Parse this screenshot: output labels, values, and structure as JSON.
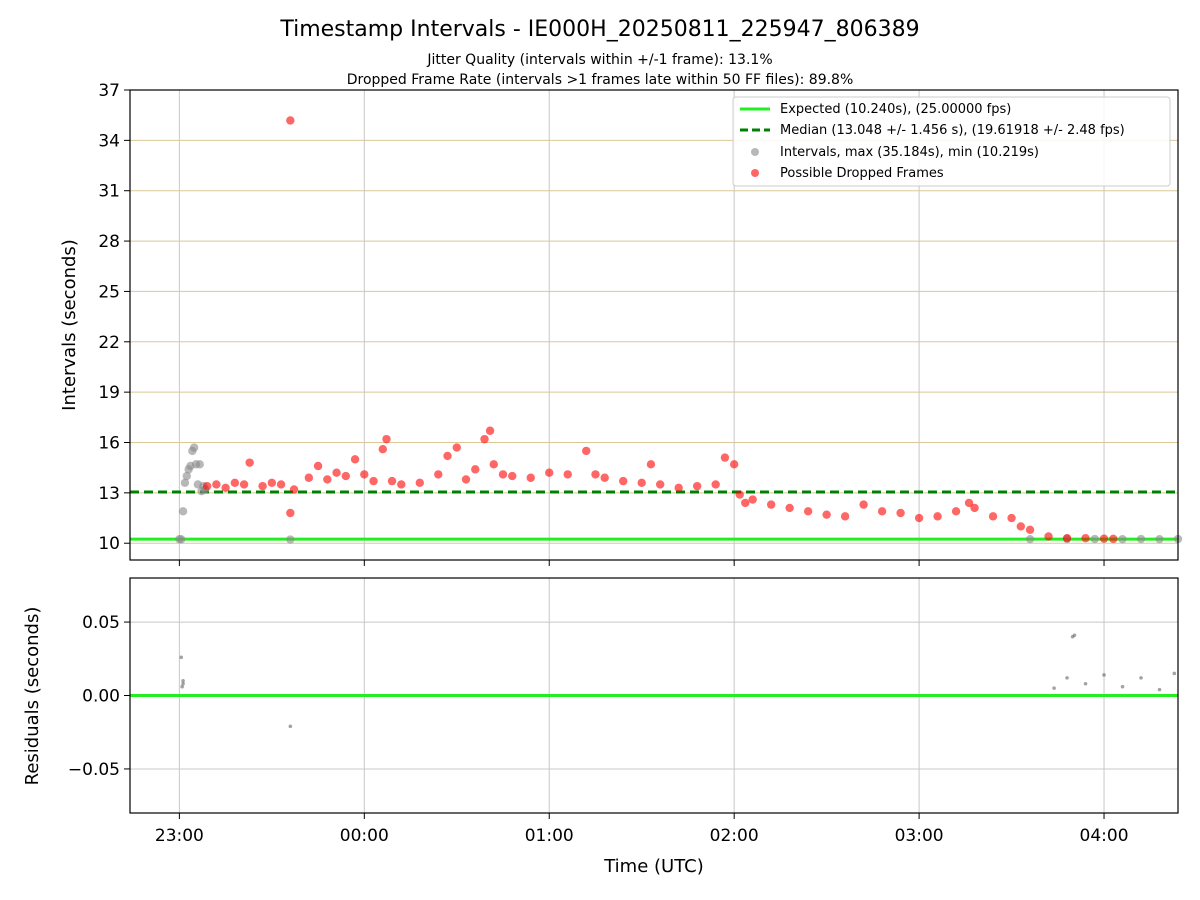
{
  "chart_data": [
    {
      "type": "scatter",
      "title": "Timestamp Intervals - IE000H_20250811_225947_806389",
      "subtitle_lines": [
        "Jitter Quality (intervals within +/-1 frame): 13.1%",
        "Dropped Frame Rate (intervals >1 frames late within 50 FF files): 89.8%"
      ],
      "xlabel": "",
      "ylabel": "Intervals (seconds)",
      "x_unit": "hours UTC (continuous past midnight)",
      "xlim": [
        22.733,
        28.4
      ],
      "ylim": [
        9,
        37
      ],
      "yticks": [
        10,
        13,
        16,
        19,
        22,
        25,
        28,
        31,
        34,
        37
      ],
      "xticks": [
        23,
        24,
        25,
        26,
        27,
        28
      ],
      "xtick_labels": [
        "23:00",
        "00:00",
        "01:00",
        "02:00",
        "03:00",
        "04:00"
      ],
      "grid": true,
      "legend_position": "upper right",
      "legend": [
        "Expected (10.240s), (25.00000 fps)",
        "Median (13.048 +/- 1.456 s), (19.61918 +/- 2.48 fps)",
        "Intervals, max (35.184s), min (10.219s)",
        "Possible Dropped Frames"
      ],
      "lines": [
        {
          "name": "Expected (10.240s), (25.00000 fps)",
          "y": 10.24,
          "style": "solid",
          "color": "#22ee22"
        },
        {
          "name": "Median (13.048 +/- 1.456 s), (19.61918 +/- 2.48 fps)",
          "y": 13.048,
          "style": "dashed",
          "color": "#008000"
        }
      ],
      "series": [
        {
          "name": "Intervals, max (35.184s), min (10.219s)",
          "color": "#888888",
          "points": [
            [
              23.0,
              10.24
            ],
            [
              23.01,
              10.23
            ],
            [
              23.02,
              11.9
            ],
            [
              23.03,
              13.6
            ],
            [
              23.04,
              14.0
            ],
            [
              23.05,
              14.4
            ],
            [
              23.06,
              14.6
            ],
            [
              23.07,
              15.5
            ],
            [
              23.08,
              15.7
            ],
            [
              23.09,
              14.7
            ],
            [
              23.1,
              13.5
            ],
            [
              23.12,
              13.1
            ],
            [
              23.14,
              13.2
            ],
            [
              23.11,
              14.7
            ],
            [
              23.13,
              13.4
            ],
            [
              23.6,
              10.22
            ],
            [
              27.6,
              10.24
            ],
            [
              27.8,
              10.26
            ],
            [
              27.95,
              10.25
            ],
            [
              28.1,
              10.24
            ],
            [
              28.2,
              10.25
            ],
            [
              28.3,
              10.24
            ],
            [
              28.4,
              10.25
            ]
          ]
        },
        {
          "name": "Possible Dropped Frames",
          "color": "#ff0000",
          "points": [
            [
              23.15,
              13.4
            ],
            [
              23.2,
              13.5
            ],
            [
              23.25,
              13.3
            ],
            [
              23.3,
              13.6
            ],
            [
              23.35,
              13.5
            ],
            [
              23.38,
              14.8
            ],
            [
              23.45,
              13.4
            ],
            [
              23.5,
              13.6
            ],
            [
              23.55,
              13.5
            ],
            [
              23.6,
              35.184
            ],
            [
              23.6,
              11.8
            ],
            [
              23.62,
              13.2
            ],
            [
              23.7,
              13.9
            ],
            [
              23.75,
              14.6
            ],
            [
              23.8,
              13.8
            ],
            [
              23.85,
              14.2
            ],
            [
              23.9,
              14.0
            ],
            [
              23.95,
              15.0
            ],
            [
              24.0,
              14.1
            ],
            [
              24.05,
              13.7
            ],
            [
              24.1,
              15.6
            ],
            [
              24.12,
              16.2
            ],
            [
              24.15,
              13.7
            ],
            [
              24.2,
              13.5
            ],
            [
              24.3,
              13.6
            ],
            [
              24.4,
              14.1
            ],
            [
              24.45,
              15.2
            ],
            [
              24.5,
              15.7
            ],
            [
              24.55,
              13.8
            ],
            [
              24.6,
              14.4
            ],
            [
              24.65,
              16.2
            ],
            [
              24.68,
              16.7
            ],
            [
              24.7,
              14.7
            ],
            [
              24.75,
              14.1
            ],
            [
              24.8,
              14.0
            ],
            [
              24.9,
              13.9
            ],
            [
              25.0,
              14.2
            ],
            [
              25.1,
              14.1
            ],
            [
              25.2,
              15.5
            ],
            [
              25.25,
              14.1
            ],
            [
              25.3,
              13.9
            ],
            [
              25.4,
              13.7
            ],
            [
              25.5,
              13.6
            ],
            [
              25.55,
              14.7
            ],
            [
              25.6,
              13.5
            ],
            [
              25.7,
              13.3
            ],
            [
              25.8,
              13.4
            ],
            [
              25.9,
              13.5
            ],
            [
              25.95,
              15.1
            ],
            [
              26.0,
              14.7
            ],
            [
              26.03,
              12.9
            ],
            [
              26.06,
              12.4
            ],
            [
              26.1,
              12.6
            ],
            [
              26.2,
              12.3
            ],
            [
              26.3,
              12.1
            ],
            [
              26.4,
              11.9
            ],
            [
              26.5,
              11.7
            ],
            [
              26.6,
              11.6
            ],
            [
              26.7,
              12.3
            ],
            [
              26.8,
              11.9
            ],
            [
              26.9,
              11.8
            ],
            [
              27.0,
              11.5
            ],
            [
              27.1,
              11.6
            ],
            [
              27.2,
              11.9
            ],
            [
              27.27,
              12.4
            ],
            [
              27.3,
              12.1
            ],
            [
              27.4,
              11.6
            ],
            [
              27.5,
              11.5
            ],
            [
              27.55,
              11.0
            ],
            [
              27.6,
              10.8
            ],
            [
              27.7,
              10.4
            ],
            [
              27.8,
              10.3
            ],
            [
              27.9,
              10.3
            ],
            [
              28.0,
              10.27
            ],
            [
              28.05,
              10.26
            ]
          ]
        }
      ]
    },
    {
      "type": "scatter",
      "title": "",
      "xlabel": "Time (UTC)",
      "ylabel": "Residuals (seconds)",
      "xlim": [
        22.733,
        28.4
      ],
      "ylim": [
        -0.08,
        0.08
      ],
      "yticks": [
        0.05,
        0.0,
        -0.05
      ],
      "ytick_labels": [
        "0.05",
        "0.00",
        "−0.05"
      ],
      "xticks": [
        23,
        24,
        25,
        26,
        27,
        28
      ],
      "xtick_labels": [
        "23:00",
        "00:00",
        "01:00",
        "02:00",
        "03:00",
        "04:00"
      ],
      "grid": true,
      "lines": [
        {
          "name": "zero",
          "y": 0.0,
          "style": "solid",
          "color": "#22ee22"
        }
      ],
      "series": [
        {
          "name": "",
          "color": "#666666",
          "points": [
            [
              23.01,
              0.026
            ],
            [
              23.02,
              0.01
            ],
            [
              23.02,
              0.008
            ],
            [
              23.015,
              0.006
            ],
            [
              23.6,
              -0.021
            ],
            [
              27.73,
              0.005
            ],
            [
              27.8,
              0.012
            ],
            [
              27.83,
              0.04
            ],
            [
              27.84,
              0.041
            ],
            [
              27.9,
              0.008
            ],
            [
              28.0,
              0.014
            ],
            [
              28.1,
              0.006
            ],
            [
              28.2,
              0.012
            ],
            [
              28.3,
              0.004
            ],
            [
              28.38,
              0.015
            ]
          ]
        }
      ]
    }
  ]
}
